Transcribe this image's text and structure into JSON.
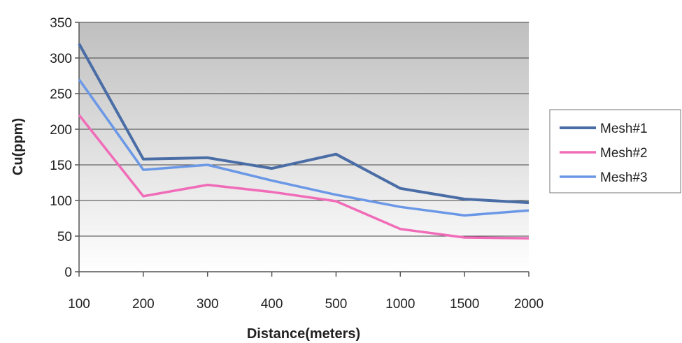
{
  "chart_data": {
    "type": "line",
    "title": "",
    "xlabel": "Distance(meters)",
    "ylabel": "Cu(ppm)",
    "categories": [
      "100",
      "200",
      "300",
      "400",
      "500",
      "1000",
      "1500",
      "2000"
    ],
    "ylim": [
      0,
      350
    ],
    "yticks": [
      "0",
      "50",
      "100",
      "150",
      "200",
      "250",
      "300",
      "350"
    ],
    "grid": true,
    "legend_position": "right",
    "plot_background": "gray-gradient",
    "series": [
      {
        "name": "Mesh#1",
        "color": "#4a6da6",
        "values": [
          320,
          158,
          160,
          145,
          165,
          117,
          102,
          97
        ]
      },
      {
        "name": "Mesh#2",
        "color": "#f06cb8",
        "values": [
          220,
          106,
          122,
          112,
          99,
          60,
          48,
          47
        ]
      },
      {
        "name": "Mesh#3",
        "color": "#6b98e6",
        "values": [
          270,
          143,
          150,
          128,
          108,
          91,
          79,
          86
        ]
      }
    ]
  }
}
